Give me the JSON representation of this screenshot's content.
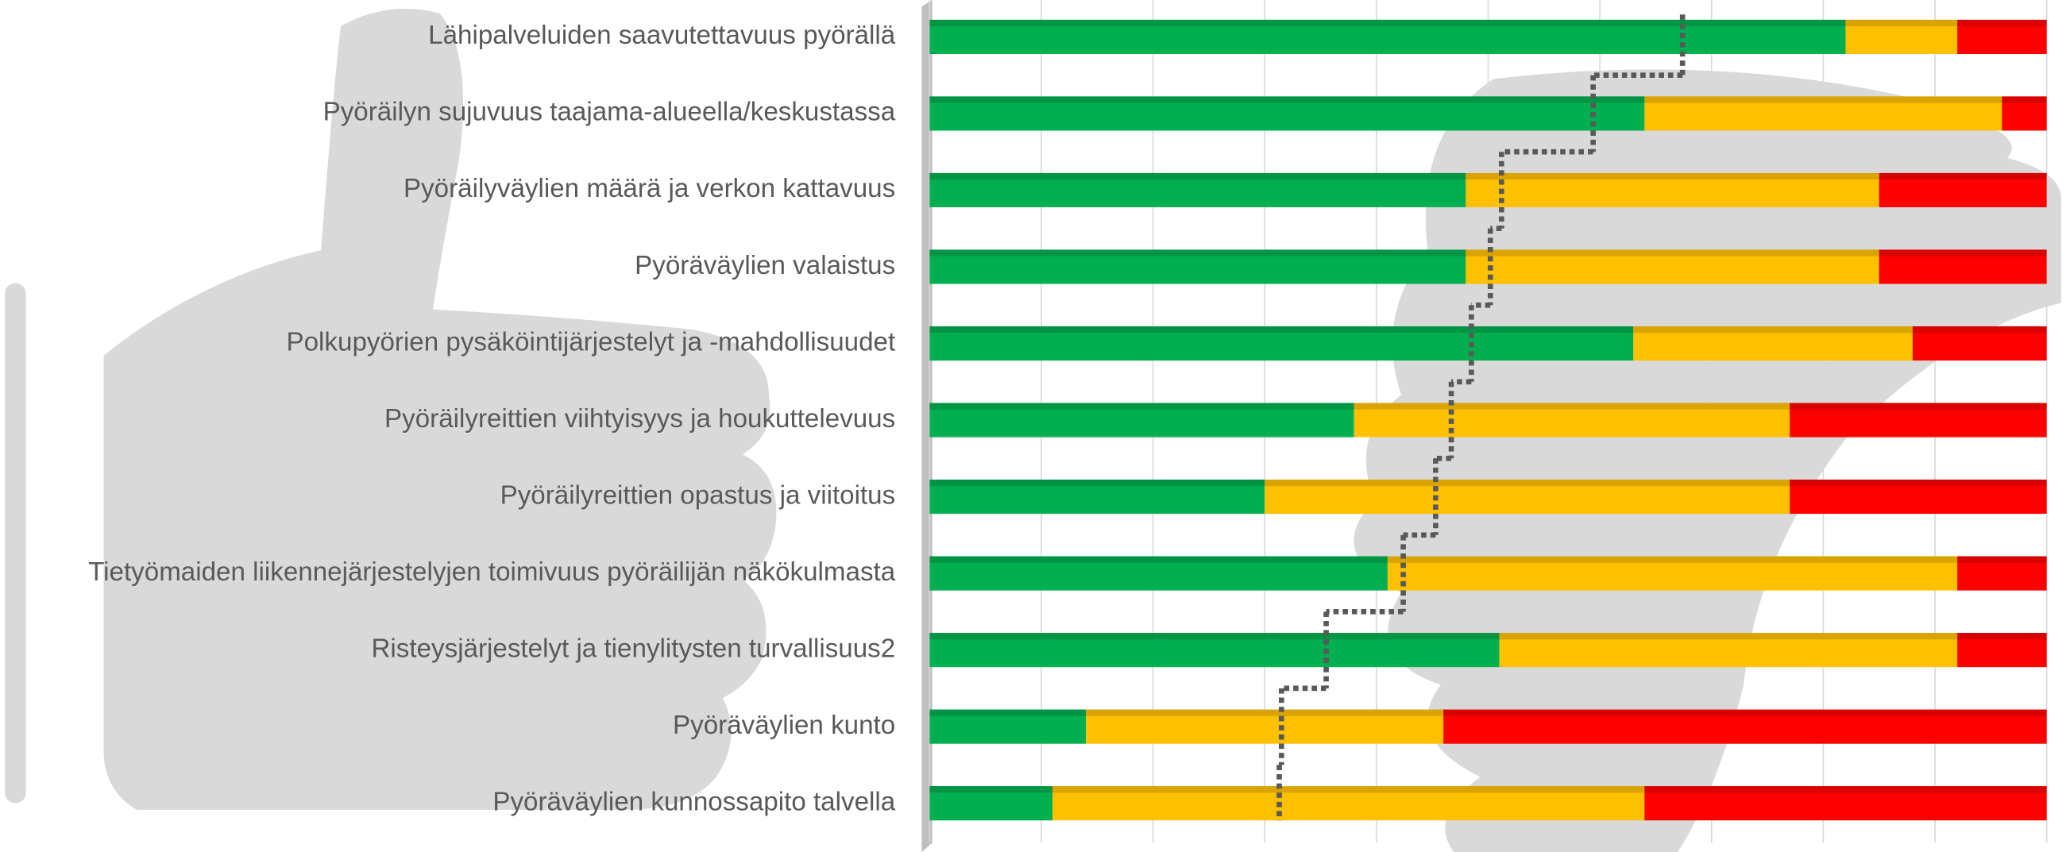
{
  "chart_data": {
    "type": "stacked_barh",
    "categories": [
      "Lähipalveluiden saavutettavuus pyörällä",
      "Pyöräilyn sujuvuus taajama-alueella/keskustassa",
      "Pyöräilyväylien määrä ja verkon kattavuus",
      "Pyöräväylien valaistus",
      "Polkupyörien pysäköintijärjestelyt ja -mahdollisuudet",
      "Pyöräilyreittien viihtyisyys ja houkuttelevuus",
      "Pyöräilyreittien opastus ja viitoitus",
      "Tietyömaiden liikennejärjestelyjen toimivuus pyöräilijän näkökulmasta",
      "Risteysjärjestelyt ja tienylitysten turvallisuus2",
      "Pyöräväylien kunto",
      "Pyöräväylien kunnossapito talvella"
    ],
    "series": [
      {
        "color": "#00b050",
        "values": [
          82,
          64,
          48,
          48,
          63,
          38,
          30,
          41,
          51,
          14,
          11
        ]
      },
      {
        "color": "#ffc000",
        "values": [
          10,
          32,
          37,
          37,
          25,
          39,
          47,
          51,
          41,
          32,
          53
        ]
      },
      {
        "color": "#ff0000",
        "values": [
          8,
          4,
          15,
          15,
          12,
          23,
          23,
          8,
          8,
          54,
          36
        ]
      }
    ],
    "line": {
      "color": "#595959",
      "values": [
        67.4,
        59.4,
        51.2,
        50.2,
        48.5,
        46.7,
        45.3,
        42.4,
        35.5,
        31.5,
        31.3
      ]
    },
    "xlim": [
      0,
      100
    ],
    "xticks": [
      0,
      10,
      20,
      30,
      40,
      50,
      60,
      70,
      80,
      90,
      100
    ],
    "grid": true
  }
}
